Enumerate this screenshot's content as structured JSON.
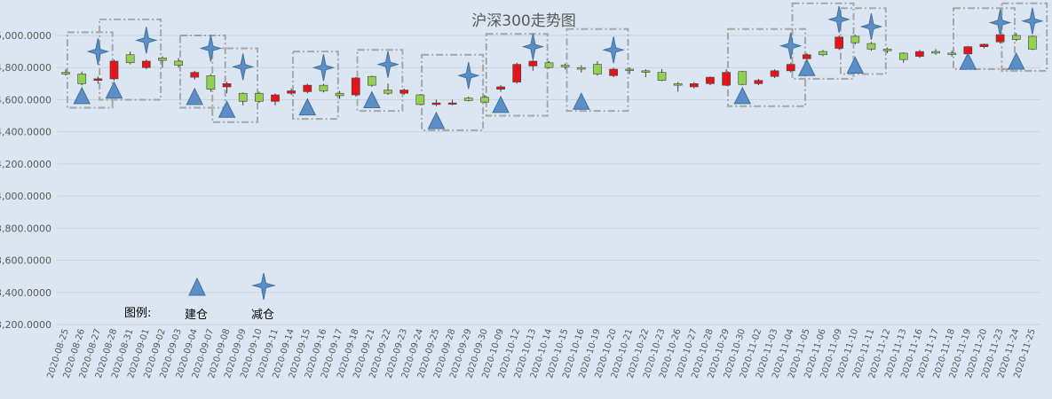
{
  "chart_data": {
    "type": "candlestick",
    "title": "沪深300走势图",
    "ylim": [
      3200,
      5100
    ],
    "yticks": [
      5000,
      4800,
      4600,
      4400,
      4200,
      4000,
      3800,
      3600,
      3400,
      3200
    ],
    "ytick_labels": [
      "5,000.0000",
      "4,800.0000",
      "4,600.0000",
      "4,400.0000",
      "4,200.0000",
      "4,000.0000",
      "3,800.0000",
      "3,600.0000",
      "3,400.0000",
      "3,200.0000"
    ],
    "colors": {
      "up": "#e3151a",
      "down": "#92d050",
      "border": "#404040",
      "marker": "#5b8ec7",
      "box": "#a6a6a6"
    },
    "candles": [
      {
        "date": "2020-08-25",
        "open": 4770,
        "close": 4760,
        "high": 4790,
        "low": 4750
      },
      {
        "date": "2020-08-26",
        "open": 4760,
        "close": 4700,
        "high": 4775,
        "low": 4690
      },
      {
        "date": "2020-08-27",
        "open": 4720,
        "close": 4730,
        "high": 4745,
        "low": 4700
      },
      {
        "date": "2020-08-28",
        "open": 4730,
        "close": 4840,
        "high": 4850,
        "low": 4720
      },
      {
        "date": "2020-08-31",
        "open": 4880,
        "close": 4830,
        "high": 4900,
        "low": 4820
      },
      {
        "date": "2020-09-01",
        "open": 4800,
        "close": 4840,
        "high": 4850,
        "low": 4790
      },
      {
        "date": "2020-09-02",
        "open": 4860,
        "close": 4845,
        "high": 4870,
        "low": 4800
      },
      {
        "date": "2020-09-03",
        "open": 4840,
        "close": 4815,
        "high": 4860,
        "low": 4800
      },
      {
        "date": "2020-09-04",
        "open": 4740,
        "close": 4770,
        "high": 4780,
        "low": 4725
      },
      {
        "date": "2020-09-07",
        "open": 4750,
        "close": 4665,
        "high": 4760,
        "low": 4650
      },
      {
        "date": "2020-09-08",
        "open": 4680,
        "close": 4700,
        "high": 4710,
        "low": 4640
      },
      {
        "date": "2020-09-09",
        "open": 4640,
        "close": 4590,
        "high": 4645,
        "low": 4565
      },
      {
        "date": "2020-09-10",
        "open": 4640,
        "close": 4590,
        "high": 4650,
        "low": 4580
      },
      {
        "date": "2020-09-11",
        "open": 4590,
        "close": 4630,
        "high": 4640,
        "low": 4565
      },
      {
        "date": "2020-09-14",
        "open": 4640,
        "close": 4655,
        "high": 4670,
        "low": 4630
      },
      {
        "date": "2020-09-15",
        "open": 4650,
        "close": 4690,
        "high": 4700,
        "low": 4640
      },
      {
        "date": "2020-09-16",
        "open": 4690,
        "close": 4655,
        "high": 4700,
        "low": 4645
      },
      {
        "date": "2020-09-17",
        "open": 4640,
        "close": 4625,
        "high": 4655,
        "low": 4605
      },
      {
        "date": "2020-09-18",
        "open": 4630,
        "close": 4735,
        "high": 4740,
        "low": 4620
      },
      {
        "date": "2020-09-21",
        "open": 4745,
        "close": 4690,
        "high": 4750,
        "low": 4680
      },
      {
        "date": "2020-09-22",
        "open": 4660,
        "close": 4640,
        "high": 4700,
        "low": 4630
      },
      {
        "date": "2020-09-23",
        "open": 4640,
        "close": 4660,
        "high": 4670,
        "low": 4630
      },
      {
        "date": "2020-09-24",
        "open": 4630,
        "close": 4570,
        "high": 4635,
        "low": 4565
      },
      {
        "date": "2020-09-25",
        "open": 4570,
        "close": 4580,
        "high": 4600,
        "low": 4560
      },
      {
        "date": "2020-09-28",
        "open": 4580,
        "close": 4580,
        "high": 4600,
        "low": 4565
      },
      {
        "date": "2020-09-29",
        "open": 4610,
        "close": 4595,
        "high": 4620,
        "low": 4590
      },
      {
        "date": "2020-09-30",
        "open": 4615,
        "close": 4585,
        "high": 4630,
        "low": 4580
      },
      {
        "date": "2020-10-09",
        "open": 4665,
        "close": 4680,
        "high": 4690,
        "low": 4650
      },
      {
        "date": "2020-10-12",
        "open": 4710,
        "close": 4820,
        "high": 4830,
        "low": 4700
      },
      {
        "date": "2020-10-13",
        "open": 4810,
        "close": 4840,
        "high": 4845,
        "low": 4780
      },
      {
        "date": "2020-10-14",
        "open": 4830,
        "close": 4800,
        "high": 4840,
        "low": 4795
      },
      {
        "date": "2020-10-15",
        "open": 4815,
        "close": 4805,
        "high": 4825,
        "low": 4790
      },
      {
        "date": "2020-10-16",
        "open": 4800,
        "close": 4790,
        "high": 4815,
        "low": 4770
      },
      {
        "date": "2020-10-19",
        "open": 4820,
        "close": 4760,
        "high": 4840,
        "low": 4750
      },
      {
        "date": "2020-10-20",
        "open": 4750,
        "close": 4790,
        "high": 4800,
        "low": 4740
      },
      {
        "date": "2020-10-21",
        "open": 4790,
        "close": 4785,
        "high": 4800,
        "low": 4760
      },
      {
        "date": "2020-10-22",
        "open": 4780,
        "close": 4770,
        "high": 4790,
        "low": 4740
      },
      {
        "date": "2020-10-23",
        "open": 4770,
        "close": 4720,
        "high": 4790,
        "low": 4715
      },
      {
        "date": "2020-10-26",
        "open": 4700,
        "close": 4690,
        "high": 4710,
        "low": 4650
      },
      {
        "date": "2020-10-27",
        "open": 4680,
        "close": 4700,
        "high": 4710,
        "low": 4670
      },
      {
        "date": "2020-10-28",
        "open": 4700,
        "close": 4740,
        "high": 4745,
        "low": 4690
      },
      {
        "date": "2020-10-29",
        "open": 4690,
        "close": 4770,
        "high": 4790,
        "low": 4685
      },
      {
        "date": "2020-10-30",
        "open": 4775,
        "close": 4695,
        "high": 4780,
        "low": 4690
      },
      {
        "date": "2020-11-02",
        "open": 4700,
        "close": 4720,
        "high": 4730,
        "low": 4690
      },
      {
        "date": "2020-11-03",
        "open": 4745,
        "close": 4780,
        "high": 4790,
        "low": 4735
      },
      {
        "date": "2020-11-04",
        "open": 4780,
        "close": 4820,
        "high": 4830,
        "low": 4770
      },
      {
        "date": "2020-11-05",
        "open": 4855,
        "close": 4880,
        "high": 4890,
        "low": 4840
      },
      {
        "date": "2020-11-06",
        "open": 4900,
        "close": 4880,
        "high": 4910,
        "low": 4870
      },
      {
        "date": "2020-11-09",
        "open": 4920,
        "close": 4990,
        "high": 5000,
        "low": 4910
      },
      {
        "date": "2020-11-10",
        "open": 4995,
        "close": 4955,
        "high": 5005,
        "low": 4945
      },
      {
        "date": "2020-11-11",
        "open": 4950,
        "close": 4915,
        "high": 4960,
        "low": 4905
      },
      {
        "date": "2020-11-12",
        "open": 4915,
        "close": 4905,
        "high": 4925,
        "low": 4890
      },
      {
        "date": "2020-11-13",
        "open": 4890,
        "close": 4850,
        "high": 4895,
        "low": 4830
      },
      {
        "date": "2020-11-16",
        "open": 4870,
        "close": 4900,
        "high": 4910,
        "low": 4860
      },
      {
        "date": "2020-11-17",
        "open": 4900,
        "close": 4890,
        "high": 4915,
        "low": 4880
      },
      {
        "date": "2020-11-18",
        "open": 4890,
        "close": 4885,
        "high": 4905,
        "low": 4870
      },
      {
        "date": "2020-11-19",
        "open": 4885,
        "close": 4930,
        "high": 4935,
        "low": 4875
      },
      {
        "date": "2020-11-20",
        "open": 4930,
        "close": 4945,
        "high": 4950,
        "low": 4920
      },
      {
        "date": "2020-11-23",
        "open": 4960,
        "close": 5005,
        "high": 5010,
        "low": 4950
      },
      {
        "date": "2020-11-24",
        "open": 5000,
        "close": 4975,
        "high": 5015,
        "low": 4965
      },
      {
        "date": "2020-11-25",
        "open": 4995,
        "close": 4915,
        "high": 5000,
        "low": 4910
      }
    ],
    "buy_markers": [
      {
        "date": "2020-08-26",
        "y": 4625
      },
      {
        "date": "2020-08-28",
        "y": 4660
      },
      {
        "date": "2020-09-04",
        "y": 4620
      },
      {
        "date": "2020-09-08",
        "y": 4540
      },
      {
        "date": "2020-09-15",
        "y": 4555
      },
      {
        "date": "2020-09-21",
        "y": 4600
      },
      {
        "date": "2020-09-25",
        "y": 4470
      },
      {
        "date": "2020-10-09",
        "y": 4570
      },
      {
        "date": "2020-10-16",
        "y": 4590
      },
      {
        "date": "2020-10-30",
        "y": 4625
      },
      {
        "date": "2020-11-05",
        "y": 4800
      },
      {
        "date": "2020-11-10",
        "y": 4815
      },
      {
        "date": "2020-11-19",
        "y": 4840
      },
      {
        "date": "2020-11-24",
        "y": 4840
      }
    ],
    "sell_markers": [
      {
        "date": "2020-08-27",
        "y": 4900
      },
      {
        "date": "2020-09-01",
        "y": 4970
      },
      {
        "date": "2020-09-07",
        "y": 4920
      },
      {
        "date": "2020-09-09",
        "y": 4805
      },
      {
        "date": "2020-09-16",
        "y": 4800
      },
      {
        "date": "2020-09-22",
        "y": 4820
      },
      {
        "date": "2020-09-29",
        "y": 4750
      },
      {
        "date": "2020-10-13",
        "y": 4930
      },
      {
        "date": "2020-10-20",
        "y": 4910
      },
      {
        "date": "2020-11-04",
        "y": 4935
      },
      {
        "date": "2020-11-09",
        "y": 5100
      },
      {
        "date": "2020-11-11",
        "y": 5055
      },
      {
        "date": "2020-11-23",
        "y": 5080
      },
      {
        "date": "2020-11-25",
        "y": 5090
      }
    ],
    "highlight_boxes": [
      {
        "from": "2020-08-26",
        "to": "2020-08-27",
        "y_low": 4550,
        "y_high": 5020
      },
      {
        "from": "2020-08-28",
        "to": "2020-09-01",
        "y_low": 4600,
        "y_high": 5100
      },
      {
        "from": "2020-09-04",
        "to": "2020-09-07",
        "y_low": 4550,
        "y_high": 5000
      },
      {
        "from": "2020-09-08",
        "to": "2020-09-09",
        "y_low": 4460,
        "y_high": 4920
      },
      {
        "from": "2020-09-15",
        "to": "2020-09-16",
        "y_low": 4480,
        "y_high": 4900
      },
      {
        "from": "2020-09-21",
        "to": "2020-09-22",
        "y_low": 4530,
        "y_high": 4910
      },
      {
        "from": "2020-09-25",
        "to": "2020-09-29",
        "y_low": 4410,
        "y_high": 4880
      },
      {
        "from": "2020-10-09",
        "to": "2020-10-13",
        "y_low": 4500,
        "y_high": 5010
      },
      {
        "from": "2020-10-16",
        "to": "2020-10-20",
        "y_low": 4530,
        "y_high": 5040
      },
      {
        "from": "2020-10-30",
        "to": "2020-11-04",
        "y_low": 4560,
        "y_high": 5040
      },
      {
        "from": "2020-11-05",
        "to": "2020-11-09",
        "y_low": 4730,
        "y_high": 5200
      },
      {
        "from": "2020-11-10",
        "to": "2020-11-11",
        "y_low": 4760,
        "y_high": 5170
      },
      {
        "from": "2020-11-19",
        "to": "2020-11-23",
        "y_low": 4790,
        "y_high": 5170
      },
      {
        "from": "2020-11-24",
        "to": "2020-11-25",
        "y_low": 4780,
        "y_high": 5200
      }
    ]
  },
  "legend": {
    "label": "图例:",
    "buy": "建仓",
    "sell": "减仓"
  }
}
